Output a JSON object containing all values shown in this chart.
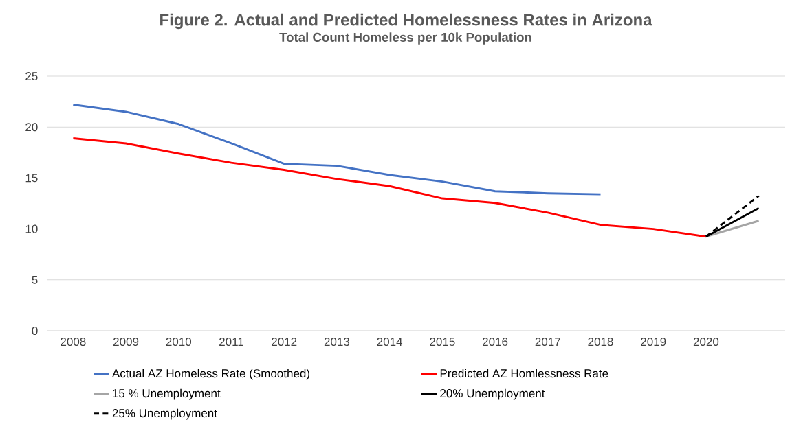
{
  "chart_data": {
    "type": "line",
    "title": "Figure 2. Actual and Predicted Homelessness Rates in Arizona",
    "subtitle": "Total Count Homeless per 10k Population",
    "categories": [
      "2008",
      "2009",
      "2010",
      "2011",
      "2012",
      "2013",
      "2014",
      "2015",
      "2016",
      "2017",
      "2018",
      "2019",
      "2020",
      null
    ],
    "series": [
      {
        "name": "Actual AZ Homeless Rate (Smoothed)",
        "color": "#4472c4",
        "values": [
          22.2,
          21.5,
          20.3,
          18.4,
          16.4,
          16.2,
          15.3,
          14.65,
          13.7,
          13.5,
          13.4,
          null,
          null,
          null
        ]
      },
      {
        "name": "Predicted AZ Homlessness Rate",
        "color": "#ff0000",
        "values": [
          18.9,
          18.4,
          17.4,
          16.5,
          15.8,
          14.9,
          14.2,
          13.0,
          12.55,
          11.6,
          10.4,
          10.0,
          9.25,
          null
        ]
      },
      {
        "name": "15 % Unemployment",
        "color": "#a5a5a5",
        "values": [
          null,
          null,
          null,
          null,
          null,
          null,
          null,
          null,
          null,
          null,
          null,
          null,
          9.25,
          10.8
        ]
      },
      {
        "name": "20% Unemployment",
        "color": "#000000",
        "values": [
          null,
          null,
          null,
          null,
          null,
          null,
          null,
          null,
          null,
          null,
          null,
          null,
          9.25,
          12.05
        ]
      },
      {
        "name": "25% Unemployment",
        "color": "#000000",
        "line_style": "dashed",
        "values": [
          null,
          null,
          null,
          null,
          null,
          null,
          null,
          null,
          null,
          null,
          null,
          null,
          9.25,
          13.25
        ]
      }
    ],
    "ylim": [
      0,
      25
    ],
    "yticks": [
      0,
      5,
      10,
      15,
      20,
      25
    ],
    "grid": "y",
    "legend": "bottom",
    "marker": "none",
    "line_style": "solid"
  }
}
